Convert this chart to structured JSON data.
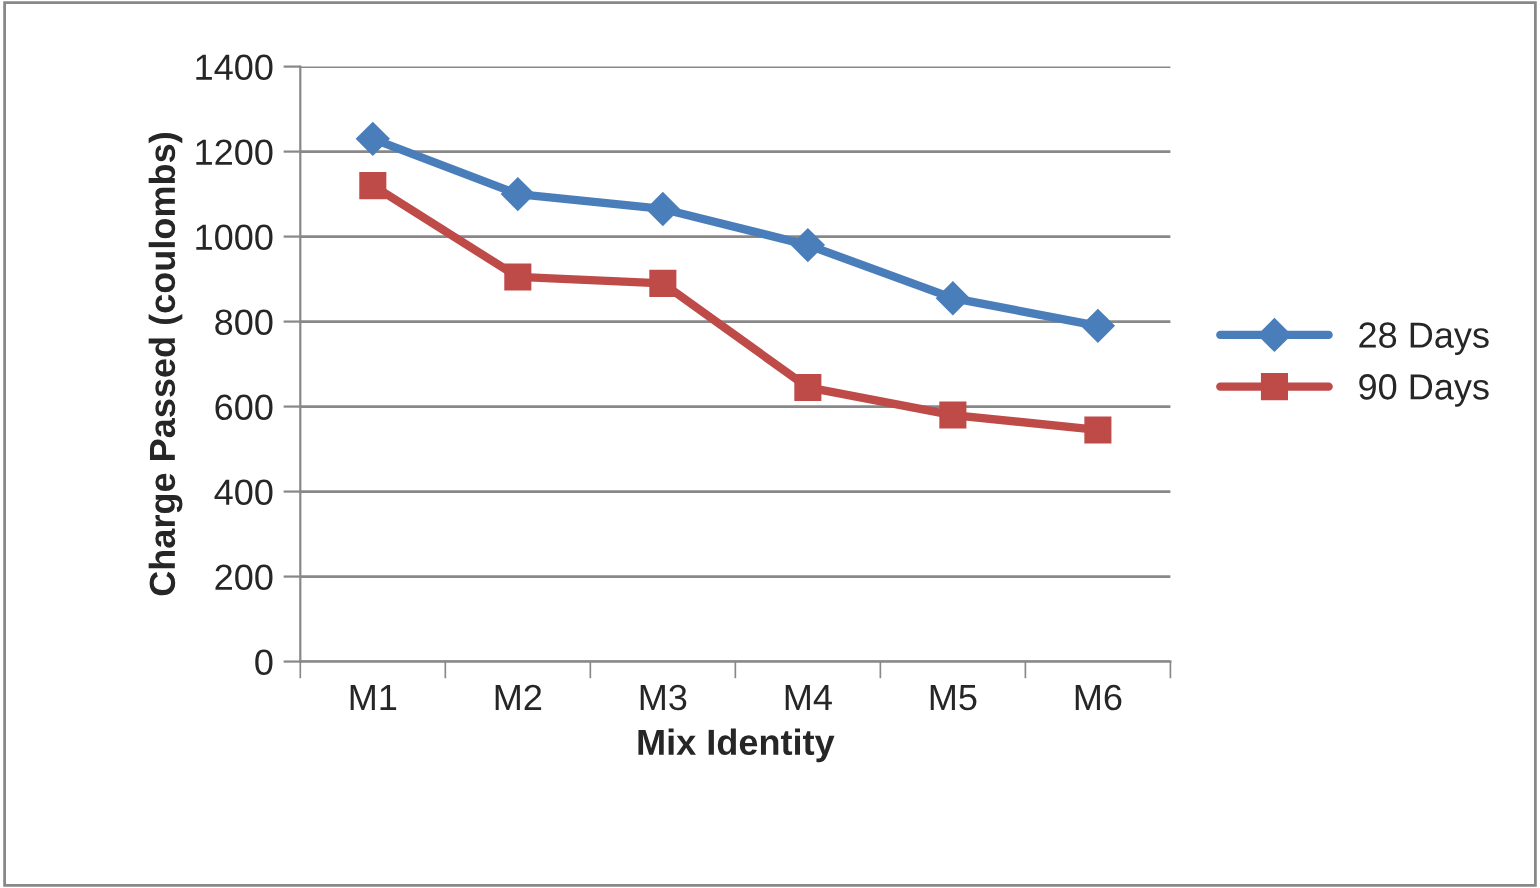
{
  "chart_data": {
    "type": "line",
    "xlabel": "Mix Identity",
    "ylabel": "Charge Passed (coulombs)",
    "categories": [
      "M1",
      "M2",
      "M3",
      "M4",
      "M5",
      "M6"
    ],
    "series": [
      {
        "name": "28 Days",
        "color": "#4a7ebb",
        "marker": "diamond",
        "values": [
          1230,
          1100,
          1065,
          980,
          855,
          790
        ]
      },
      {
        "name": "90 Days",
        "color": "#be4b48",
        "marker": "square",
        "values": [
          1120,
          905,
          890,
          645,
          580,
          545
        ]
      }
    ],
    "ylim": [
      0,
      1400
    ],
    "yticks": [
      0,
      200,
      400,
      600,
      800,
      1000,
      1200,
      1400
    ],
    "grid": "y",
    "legend": "right",
    "line_style": "solid"
  }
}
